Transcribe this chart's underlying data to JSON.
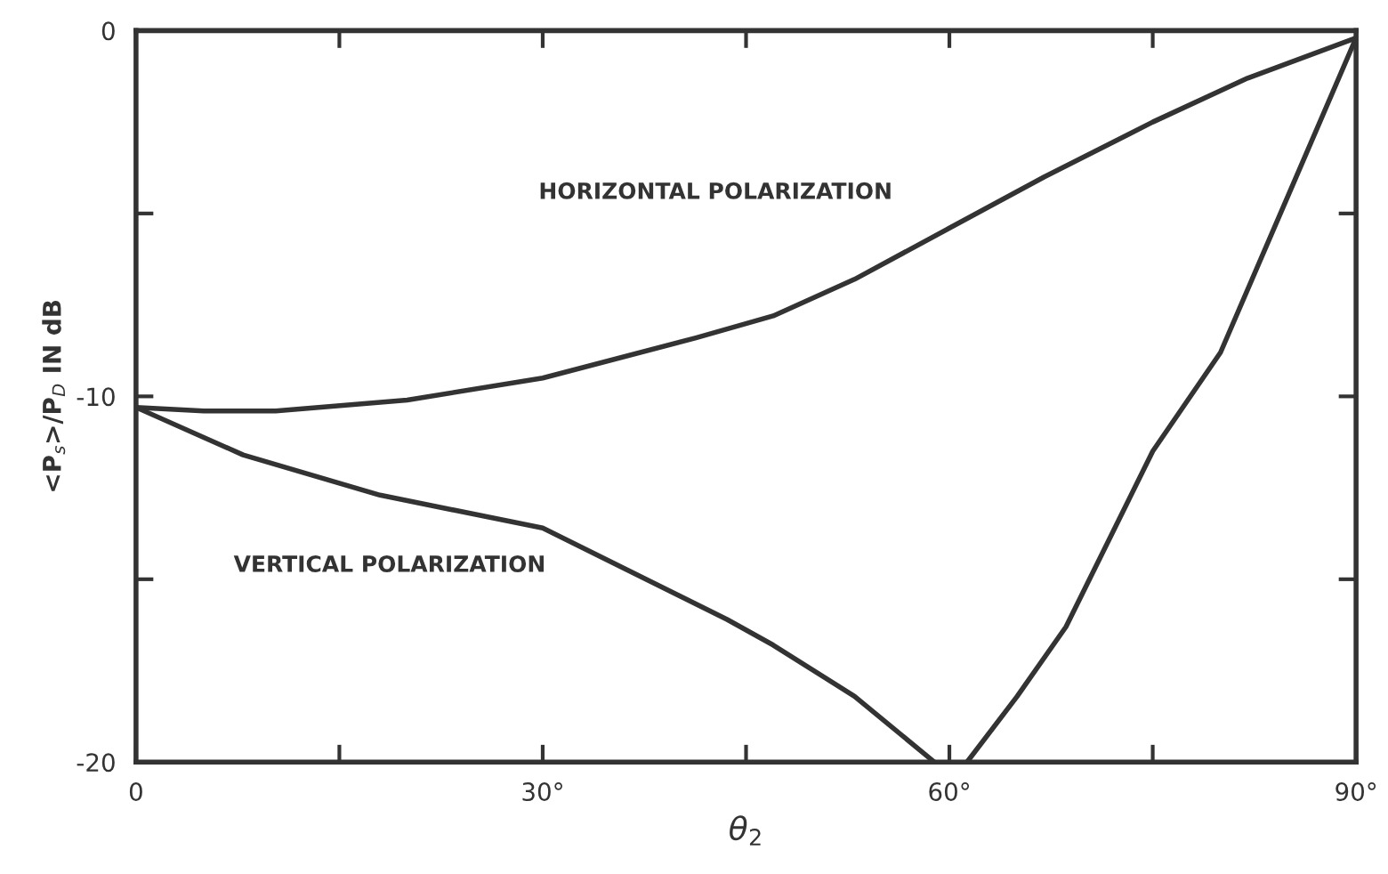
{
  "chart_data": {
    "type": "line",
    "xlabel": "θ$_{2}$",
    "ylabel": "<P$_{s}$>/P$_{D}$ IN dB",
    "xlim": [
      0,
      90
    ],
    "ylim": [
      -20,
      0
    ],
    "xticks": [
      0,
      {
        "value": 15,
        "label": null
      },
      {
        "value": 30,
        "label": "30°"
      },
      {
        "value": 45,
        "label": null
      },
      {
        "value": 60,
        "label": "60°"
      },
      {
        "value": 75,
        "label": null
      },
      {
        "value": 90,
        "label": "90°"
      }
    ],
    "yticks": [
      -20,
      {
        "value": -15,
        "label": null
      },
      -10,
      {
        "value": -5,
        "label": null
      },
      0
    ],
    "grid": false,
    "legend": false,
    "marker": "none",
    "line_style": "solid",
    "series": [
      {
        "name": "HORIZONTAL POLARIZATION",
        "color": "#333333",
        "x": [
          0,
          5,
          10.3,
          20,
          30,
          41.3,
          47,
          53,
          60,
          67,
          75,
          82,
          90
        ],
        "values": [
          -10.3,
          -10.4,
          -10.4,
          -10.1,
          -9.5,
          -8.4,
          -7.8,
          -6.8,
          -5.4,
          -4.0,
          -2.5,
          -1.3,
          -0.2
        ]
      },
      {
        "name": "VERTICAL POLARIZATION",
        "color": "#333333",
        "x": [
          0,
          7.9,
          18,
          30,
          43.6,
          47,
          53,
          58.9,
          60,
          61.3,
          65,
          68.6,
          75,
          80,
          85,
          90
        ],
        "values": [
          -10.3,
          -11.6,
          -12.7,
          -13.6,
          -16.1,
          -16.8,
          -18.2,
          -20,
          null,
          -20,
          -18.2,
          -16.3,
          -11.5,
          -8.8,
          -4.5,
          -0.2
        ]
      }
    ]
  }
}
